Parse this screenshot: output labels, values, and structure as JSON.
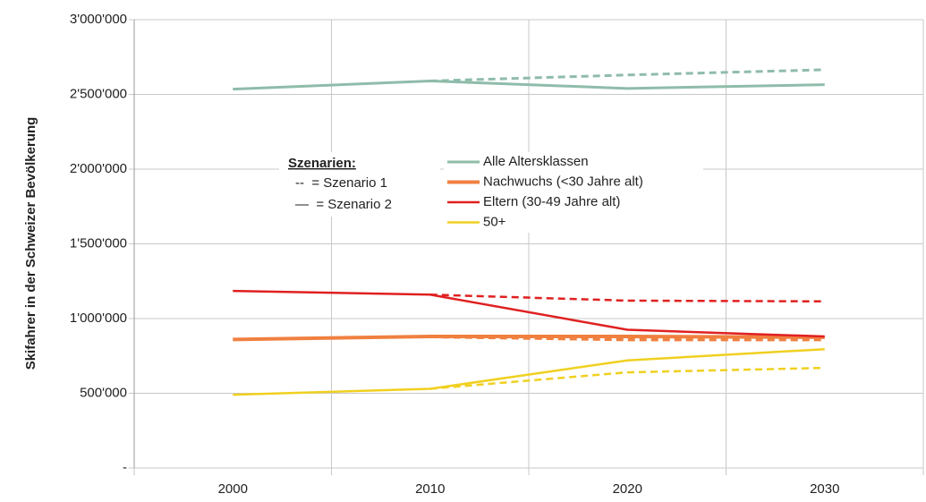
{
  "chart_data": {
    "type": "line",
    "y_label": "Skifahrer in der Schweizer Bevölkerung",
    "categories": [
      "2000",
      "2010",
      "2020",
      "2030"
    ],
    "ylim": [
      0,
      3000000
    ],
    "yticks": [
      {
        "value": 0,
        "label": "-"
      },
      {
        "value": 500000,
        "label": "500'000"
      },
      {
        "value": 1000000,
        "label": "1'000'000"
      },
      {
        "value": 1500000,
        "label": "1'500'000"
      },
      {
        "value": 2000000,
        "label": "2'000'000"
      },
      {
        "value": 2500000,
        "label": "2'500'000"
      },
      {
        "value": 3000000,
        "label": "3'000'000"
      }
    ],
    "grid": true,
    "scenario_legend": {
      "title": "Szenarien:",
      "items": [
        "--  = Szenario 1",
        "—  = Szenario 2"
      ]
    },
    "series": [
      {
        "name": "Alle Altersklassen",
        "color": "#8fbcaa",
        "width": 3,
        "values": [
          2535000,
          2590000,
          2540000,
          2565000
        ],
        "scenario1_values": [
          null,
          2590000,
          2630000,
          2665000
        ]
      },
      {
        "name": "Nachwuchs (<30 Jahre alt)",
        "color": "#f08040",
        "width": 4,
        "values": [
          860000,
          880000,
          880000,
          875000
        ],
        "scenario1_values": [
          null,
          880000,
          860000,
          860000
        ]
      },
      {
        "name": "Eltern (30-49 Jahre alt)",
        "color": "#e02020",
        "width": 2.5,
        "values": [
          1185000,
          1160000,
          925000,
          880000
        ],
        "scenario1_values": [
          null,
          1160000,
          1120000,
          1115000
        ]
      },
      {
        "name": "50+",
        "color": "#f0d020",
        "width": 2.5,
        "values": [
          490000,
          530000,
          720000,
          795000
        ],
        "scenario1_values": [
          null,
          530000,
          640000,
          670000
        ]
      }
    ]
  }
}
